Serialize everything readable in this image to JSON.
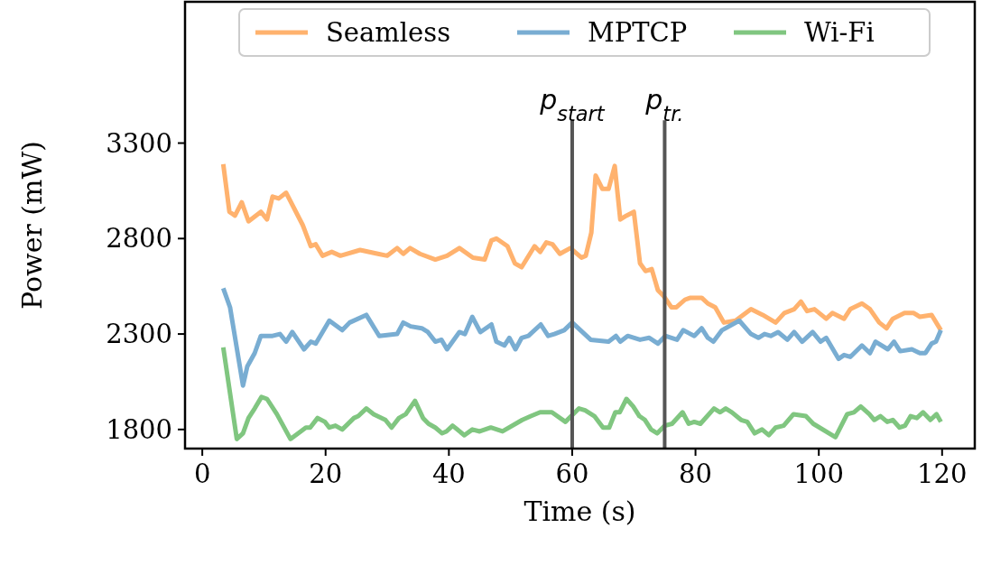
{
  "chart_data": {
    "type": "line",
    "xlabel": "Time (s)",
    "ylabel": "Power (mW)",
    "xlim": [
      -2.8,
      125.3
    ],
    "ylim": [
      1700,
      4040
    ],
    "xticks": [
      0,
      20,
      40,
      60,
      80,
      100,
      120
    ],
    "yticks": [
      1800,
      2300,
      2800,
      3300
    ],
    "grid": false,
    "legend": "top right",
    "line_style": "solid",
    "marker": "none",
    "ref_lines": [
      {
        "axis": "x",
        "value": 60,
        "label": "p$_{start}$",
        "color": "#555555"
      },
      {
        "axis": "x",
        "value": 75,
        "label": "p$_{tr.}$",
        "color": "#555555"
      }
    ],
    "series": [
      {
        "name": "Seamless",
        "color": "#ffb26e",
        "x": [
          3.4,
          4.4,
          5.3,
          6.4,
          7.5,
          9.5,
          10.5,
          11.4,
          12.4,
          13.6,
          16.3,
          17.6,
          18.4,
          19.5,
          21,
          22.4,
          25.6,
          28.5,
          30,
          31.6,
          32.6,
          33.7,
          35.3,
          37.8,
          39.7,
          41.7,
          43.9,
          45.8,
          46.9,
          47.7,
          49.5,
          50.7,
          51.8,
          53.9,
          54.8,
          55.8,
          56.8,
          58,
          59.7,
          61.5,
          62.2,
          63.1,
          63.8,
          64.9,
          65.9,
          66.9,
          67.8,
          68.8,
          70,
          71,
          71.9,
          72.9,
          73.9,
          74.8,
          76.1,
          76.9,
          78.3,
          79.2,
          81,
          82,
          83.2,
          84.6,
          86.5,
          89,
          90.9,
          93,
          94.4,
          96,
          97.1,
          98.1,
          99.3,
          101.2,
          102.2,
          104.1,
          105.1,
          107,
          108.3,
          109.8,
          111,
          112,
          113.9,
          115.4,
          116.4,
          118.3,
          119.8
        ],
        "values": [
          3190,
          2940,
          2920,
          2990,
          2890,
          2940,
          2900,
          3020,
          3010,
          3040,
          2870,
          2760,
          2770,
          2710,
          2730,
          2710,
          2740,
          2720,
          2710,
          2750,
          2720,
          2750,
          2720,
          2690,
          2710,
          2750,
          2700,
          2690,
          2790,
          2800,
          2760,
          2670,
          2650,
          2760,
          2730,
          2780,
          2770,
          2720,
          2750,
          2700,
          2710,
          2830,
          3130,
          3060,
          3060,
          3180,
          2900,
          2920,
          2940,
          2670,
          2630,
          2640,
          2530,
          2500,
          2440,
          2440,
          2480,
          2490,
          2490,
          2460,
          2440,
          2360,
          2370,
          2430,
          2400,
          2360,
          2410,
          2430,
          2470,
          2420,
          2430,
          2380,
          2410,
          2380,
          2430,
          2460,
          2430,
          2360,
          2330,
          2380,
          2410,
          2410,
          2390,
          2400,
          2320
        ]
      },
      {
        "name": "MPTCP",
        "color": "#79add2",
        "x": [
          3.4,
          4.5,
          6.6,
          7.3,
          8.5,
          9.5,
          11.4,
          12.6,
          13.6,
          14.6,
          16.5,
          17.6,
          18.4,
          20.6,
          22.7,
          23.9,
          26.6,
          28.7,
          31.6,
          32.6,
          33.8,
          35.6,
          36.6,
          37.8,
          38.8,
          39.7,
          41.7,
          42.6,
          43.8,
          45.1,
          46.9,
          47.7,
          49,
          49.8,
          50.8,
          51.8,
          52.9,
          54.9,
          56.1,
          57.1,
          58.7,
          60,
          63,
          65.9,
          67.1,
          67.8,
          69,
          71,
          72.5,
          73.9,
          75.1,
          77,
          78,
          79.8,
          81,
          82,
          82.9,
          84.3,
          87.1,
          89,
          90.2,
          91.2,
          92.2,
          93.4,
          94.9,
          96,
          97.3,
          99,
          100.3,
          101.2,
          103.2,
          104.1,
          105.1,
          107,
          108.3,
          109.2,
          111.2,
          112.2,
          113.2,
          115.1,
          116.4,
          117.3,
          118.3,
          119,
          119.8
        ],
        "values": [
          2540,
          2440,
          2030,
          2130,
          2200,
          2290,
          2290,
          2300,
          2260,
          2310,
          2220,
          2260,
          2250,
          2370,
          2320,
          2360,
          2400,
          2290,
          2300,
          2360,
          2340,
          2330,
          2310,
          2260,
          2270,
          2220,
          2310,
          2300,
          2390,
          2310,
          2350,
          2260,
          2240,
          2280,
          2220,
          2280,
          2290,
          2350,
          2290,
          2300,
          2320,
          2360,
          2270,
          2260,
          2290,
          2260,
          2290,
          2270,
          2280,
          2250,
          2290,
          2270,
          2320,
          2290,
          2330,
          2280,
          2260,
          2320,
          2370,
          2300,
          2280,
          2300,
          2290,
          2310,
          2270,
          2310,
          2260,
          2310,
          2260,
          2280,
          2170,
          2190,
          2180,
          2240,
          2200,
          2260,
          2220,
          2260,
          2210,
          2220,
          2200,
          2200,
          2250,
          2260,
          2320
        ]
      },
      {
        "name": "Wi-Fi",
        "color": "#80c680",
        "x": [
          3.4,
          5.6,
          6.6,
          7.5,
          8.5,
          9.6,
          10.5,
          12.1,
          14.3,
          16.8,
          17.5,
          18.7,
          19.9,
          20.6,
          21.6,
          22.7,
          24.6,
          25.3,
          26.6,
          27.8,
          29.7,
          30.7,
          31.9,
          33,
          34.5,
          35.8,
          36.7,
          37.8,
          38.9,
          39.6,
          40.6,
          42.5,
          43.8,
          45,
          46.8,
          48.7,
          51.9,
          53.3,
          54.8,
          56,
          56.7,
          58.9,
          61.1,
          62.1,
          63.6,
          65,
          66,
          67,
          67.7,
          68.8,
          69.9,
          70.9,
          71.8,
          72.8,
          73.8,
          75,
          76.2,
          77.9,
          78.9,
          79.8,
          80.8,
          83,
          84,
          84.9,
          85.9,
          87.4,
          88.4,
          89.6,
          90.8,
          91.9,
          93,
          94.3,
          95.9,
          97.9,
          99.1,
          102.7,
          104.6,
          105.7,
          106.8,
          108.2,
          109,
          110,
          111.1,
          112,
          113.1,
          114,
          114.9,
          115.9,
          116.9,
          118.1,
          119.1,
          119.8
        ],
        "values": [
          2230,
          1750,
          1780,
          1860,
          1910,
          1970,
          1960,
          1880,
          1750,
          1810,
          1810,
          1860,
          1840,
          1810,
          1820,
          1800,
          1860,
          1870,
          1910,
          1880,
          1850,
          1810,
          1860,
          1880,
          1950,
          1860,
          1830,
          1810,
          1780,
          1790,
          1820,
          1770,
          1800,
          1790,
          1810,
          1790,
          1850,
          1870,
          1890,
          1890,
          1890,
          1840,
          1910,
          1900,
          1870,
          1810,
          1810,
          1890,
          1890,
          1960,
          1920,
          1870,
          1850,
          1800,
          1780,
          1820,
          1830,
          1890,
          1830,
          1840,
          1830,
          1910,
          1890,
          1910,
          1890,
          1850,
          1840,
          1780,
          1800,
          1770,
          1810,
          1820,
          1880,
          1870,
          1830,
          1760,
          1880,
          1890,
          1920,
          1880,
          1850,
          1870,
          1840,
          1850,
          1810,
          1820,
          1870,
          1860,
          1890,
          1850,
          1880,
          1840
        ]
      }
    ]
  }
}
